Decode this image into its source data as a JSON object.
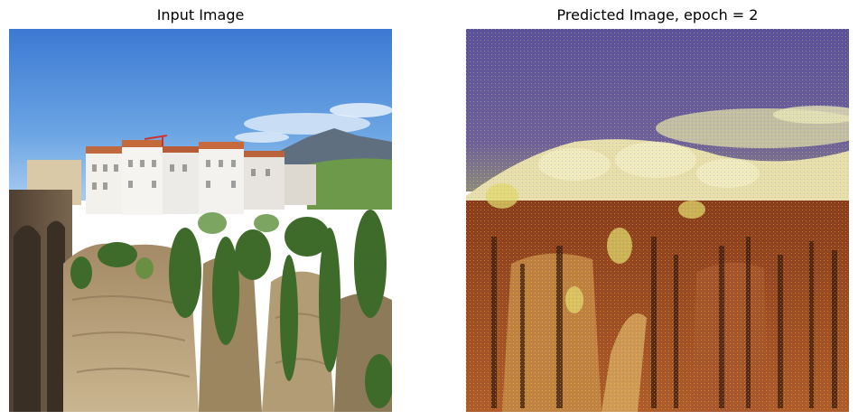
{
  "panels": {
    "input": {
      "title": "Input Image",
      "image": "input-photo"
    },
    "predicted": {
      "title": "Predicted Image, epoch = 2",
      "image": "predicted-photo"
    }
  }
}
